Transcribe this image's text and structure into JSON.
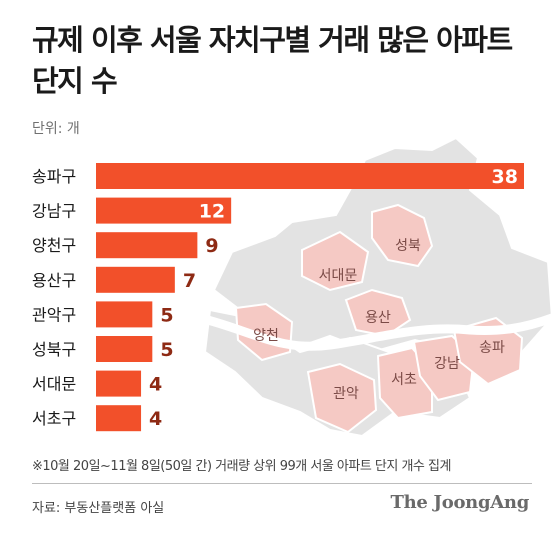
{
  "title": "규제 이후 서울 자치구별 거래 많은 아파트 단지 수",
  "unit_label": "단위: 개",
  "footnote": "※10월 20일~11월 8일(50일 간) 거래량 상위 99개 서울 아파트 단지 개수 집계",
  "source": "자료: 부동산플랫폼 아실",
  "brand": "The JoongAng",
  "colors": {
    "bar": "#f2502a",
    "value_text": "#8e2a14",
    "map_gray": "#e3e3e3",
    "map_pink": "#f5c9c4",
    "map_label": "#7a4a46"
  },
  "map_labels": [
    "성북",
    "서대문",
    "용산",
    "양천",
    "관악",
    "서초",
    "강남",
    "송파"
  ],
  "chart_data": {
    "type": "bar",
    "orientation": "horizontal",
    "categories": [
      "송파구",
      "강남구",
      "양천구",
      "용산구",
      "관악구",
      "성북구",
      "서대문",
      "서초구"
    ],
    "values": [
      38,
      12,
      9,
      7,
      5,
      5,
      4,
      4
    ],
    "xlim": [
      0,
      38
    ]
  }
}
